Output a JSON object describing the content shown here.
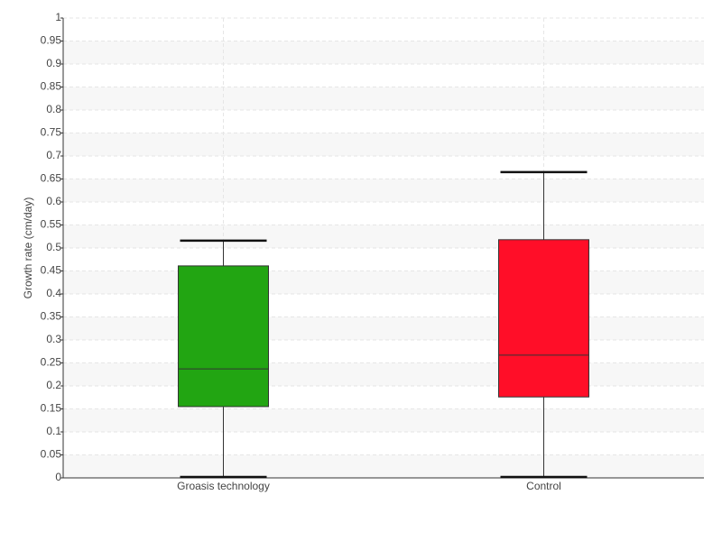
{
  "chart_data": {
    "type": "box",
    "y_label": "Growth rate (cm/day)",
    "categories": [
      "Groasis technology",
      "Control"
    ],
    "min": [
      0,
      0
    ],
    "q1": [
      0.155,
      0.176
    ],
    "median": [
      0.237,
      0.267
    ],
    "q3": [
      0.461,
      0.518
    ],
    "max": [
      0.516,
      0.665
    ],
    "colors": [
      "#22a512",
      "#ff0e28"
    ],
    "ylim": [
      0,
      1
    ],
    "yticks": [
      0,
      0.05,
      0.1,
      0.15,
      0.2,
      0.25,
      0.3,
      0.35,
      0.4,
      0.45,
      0.5,
      0.55,
      0.6,
      0.65,
      0.7,
      0.75,
      0.8,
      0.85,
      0.9,
      0.95,
      1
    ],
    "grid": true
  }
}
